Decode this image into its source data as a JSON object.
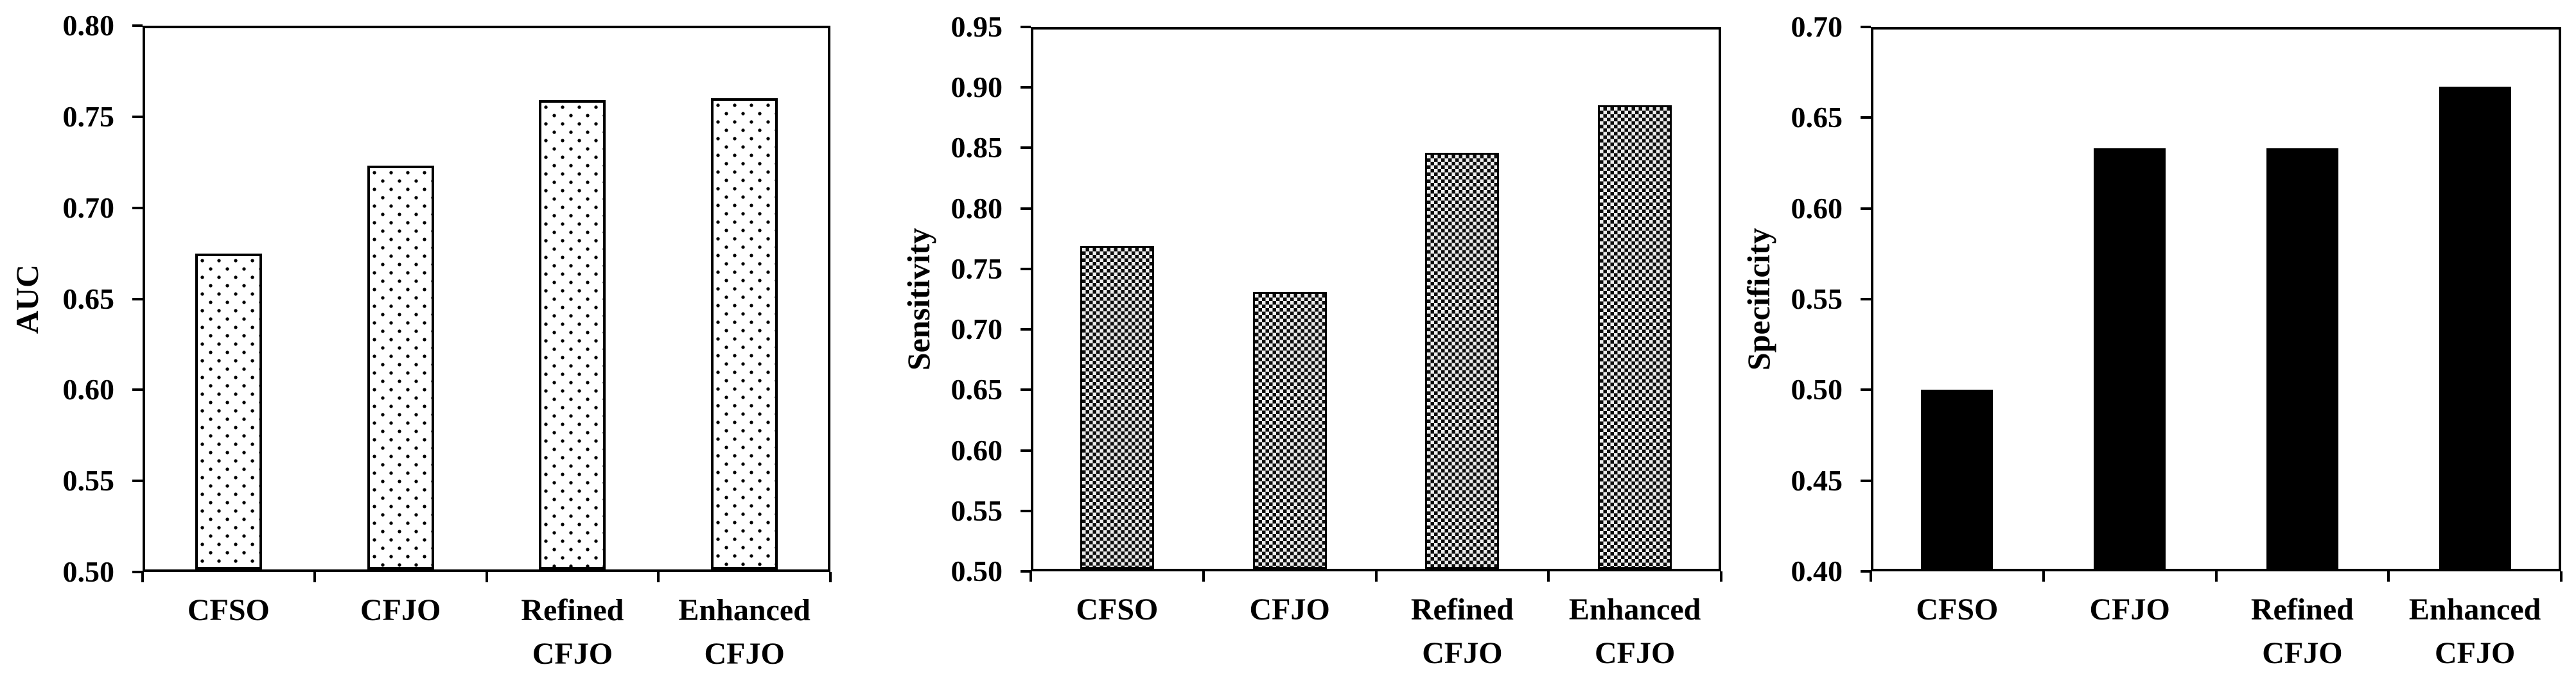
{
  "figure": {
    "background_color": "#ffffff",
    "ink_color": "#000000",
    "description_titles": [
      "AUC",
      "Sensitivity",
      "Specificity"
    ]
  },
  "chart_data": [
    {
      "type": "bar",
      "title": "",
      "xlabel": "",
      "ylabel": "AUC",
      "categories": [
        "CFSO",
        "CFJO",
        "Refined CFJO",
        "Enhanced CFJO"
      ],
      "values": [
        0.675,
        0.723,
        0.759,
        0.76
      ],
      "ylim": [
        0.5,
        0.8
      ],
      "ytick_step": 0.05,
      "ytick_labels": [
        "0.50",
        "0.55",
        "0.60",
        "0.65",
        "0.70",
        "0.75",
        "0.80"
      ],
      "grid": "off",
      "legend": "none",
      "bar_fill": "dotted",
      "bar_fill_description": "white with small black polka dots, thick black outline"
    },
    {
      "type": "bar",
      "title": "",
      "xlabel": "",
      "ylabel": "Sensitivity",
      "categories": [
        "CFSO",
        "CFJO",
        "Refined CFJO",
        "Enhanced CFJO"
      ],
      "values": [
        0.769,
        0.731,
        0.846,
        0.885
      ],
      "ylim": [
        0.5,
        0.95
      ],
      "ytick_step": 0.05,
      "ytick_labels": [
        "0.50",
        "0.55",
        "0.60",
        "0.65",
        "0.70",
        "0.75",
        "0.80",
        "0.85",
        "0.90",
        "0.95"
      ],
      "grid": "off",
      "legend": "none",
      "bar_fill": "crosshatch",
      "bar_fill_description": "dense black/white woven checker texture, black outline"
    },
    {
      "type": "bar",
      "title": "",
      "xlabel": "",
      "ylabel": "Specificity",
      "categories": [
        "CFSO",
        "CFJO",
        "Refined CFJO",
        "Enhanced CFJO"
      ],
      "values": [
        0.5,
        0.633,
        0.633,
        0.667
      ],
      "ylim": [
        0.4,
        0.7
      ],
      "ytick_step": 0.05,
      "ytick_labels": [
        "0.40",
        "0.45",
        "0.50",
        "0.55",
        "0.60",
        "0.65",
        "0.70"
      ],
      "grid": "off",
      "legend": "none",
      "bar_fill": "solid",
      "bar_fill_description": "solid black"
    }
  ]
}
